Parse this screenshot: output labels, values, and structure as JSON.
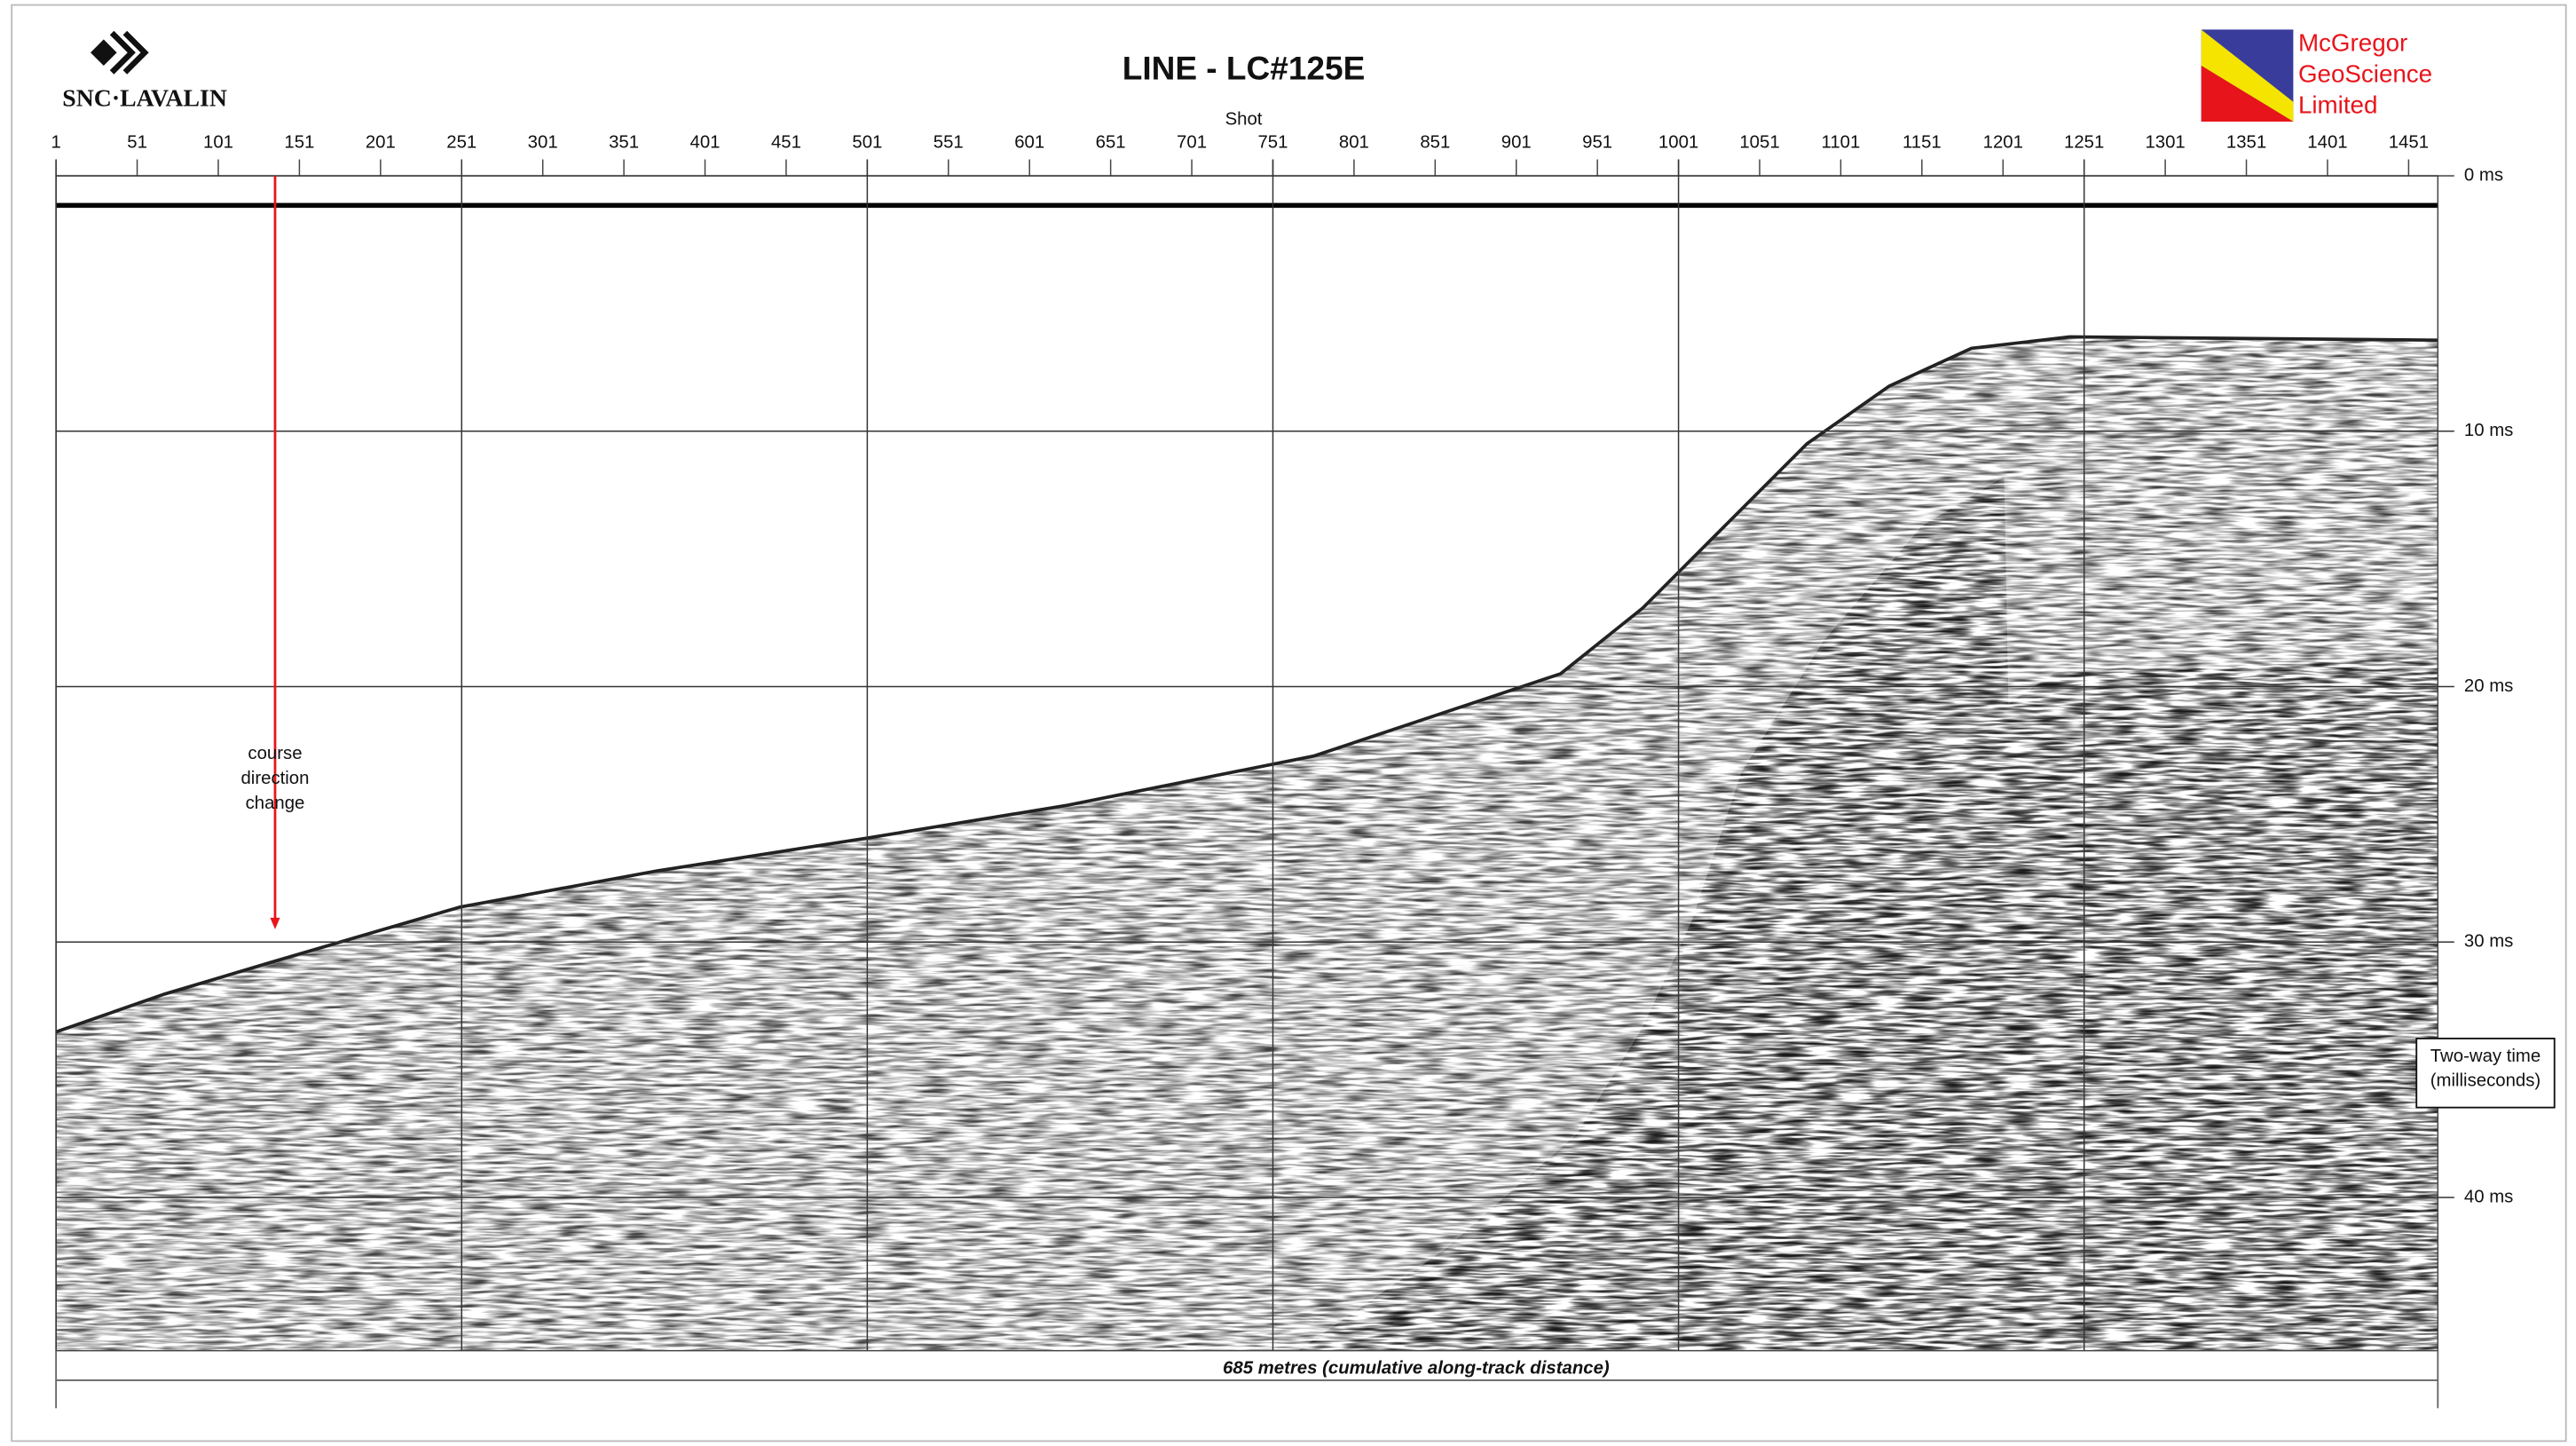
{
  "chart_data": {
    "type": "seismic",
    "title": "LINE - LC#125E",
    "xlabel": "Shot",
    "ylabel": "Two-way time (milliseconds)",
    "xlim": [
      1,
      1469
    ],
    "xticks": [
      1,
      51,
      101,
      151,
      201,
      251,
      301,
      351,
      401,
      451,
      501,
      551,
      601,
      651,
      701,
      751,
      801,
      851,
      901,
      951,
      1001,
      1051,
      1101,
      1151,
      1201,
      1251,
      1301,
      1351,
      1401,
      1451
    ],
    "xgrid": [
      1,
      251,
      501,
      751,
      1001,
      1251
    ],
    "ylim": [
      0,
      46
    ],
    "yticks": [
      {
        "value": 0,
        "label": "0 ms"
      },
      {
        "value": 10,
        "label": "10 ms"
      },
      {
        "value": 20,
        "label": "20 ms"
      },
      {
        "value": 30,
        "label": "30 ms"
      },
      {
        "value": 40,
        "label": "40 ms"
      }
    ],
    "grid": true,
    "annotation": {
      "text": "course direction change",
      "x": 136,
      "y": 29.5,
      "color": "#e8141b"
    },
    "footer": "685 metres (cumulative along-track distance)"
  },
  "logos": {
    "left": "SNC·LAVALIN",
    "right": [
      "McGregor",
      "GeoScience",
      "Limited"
    ]
  }
}
